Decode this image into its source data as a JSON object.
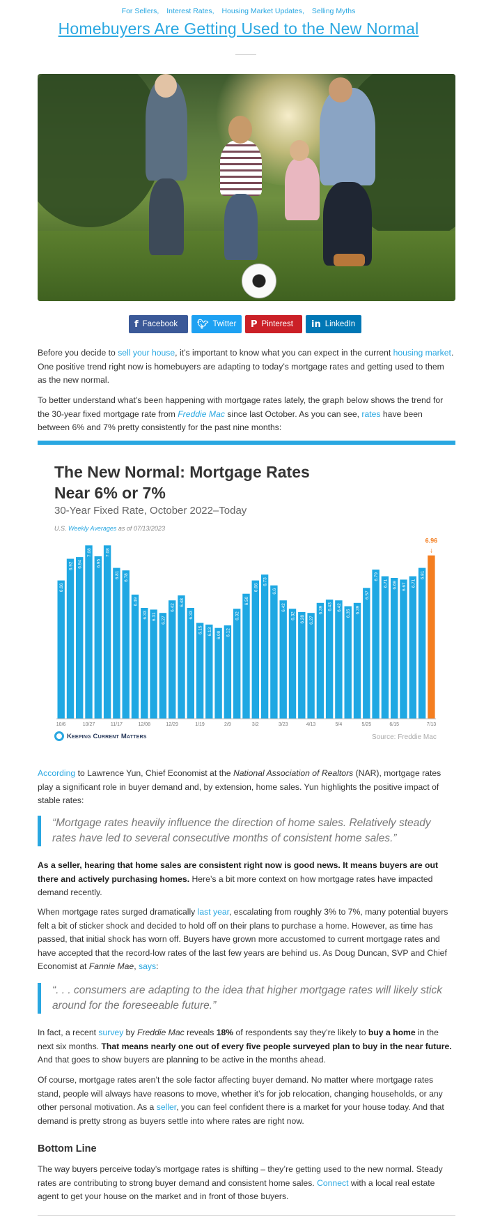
{
  "categories": [
    "For Sellers,",
    "Interest Rates,",
    "Housing Market Updates,",
    "Selling Myths"
  ],
  "title": "Homebuyers Are Getting Used to the New Normal",
  "share": {
    "facebook": "Facebook",
    "twitter": "Twitter",
    "pinterest": "Pinterest",
    "linkedin": "LinkedIn"
  },
  "p1": {
    "a": "Before you decide to ",
    "link1": "sell your house",
    "b": ", it’s important to know what you can expect in the current ",
    "link2": "housing market",
    "c": ". One positive trend right now is homebuyers are adapting to today’s mortgage rates and getting used to them as the new normal."
  },
  "p2": {
    "a": "To better understand what’s been happening with mortgage rates lately, the graph below shows the trend for the 30-year fixed mortgage rate from ",
    "link1": "Freddie Mac",
    "b": " since last October. As you can see, ",
    "link2": "rates",
    "c": " have been between 6% and 7% pretty consistently for the past nine months:"
  },
  "chart": {
    "title_line1": "The New Normal: Mortgage Rates",
    "title_line2": "Near 6% or 7%",
    "subtitle": "30-Year Fixed Rate, October 2022–Today",
    "note_a": "U.S. ",
    "note_link": "Weekly Averages",
    "note_b": " as of 07/13/2023",
    "brand": "Keeping Current Matters",
    "source": "Source: Freddie Mac"
  },
  "chart_data": {
    "type": "bar",
    "title": "The New Normal: Mortgage Rates Near 6% or 7%",
    "subtitle": "30-Year Fixed Rate, October 2022–Today",
    "values": [
      6.66,
      6.92,
      6.94,
      7.08,
      6.95,
      7.08,
      6.81,
      6.78,
      6.49,
      6.33,
      6.31,
      6.27,
      6.42,
      6.48,
      6.33,
      6.15,
      6.13,
      6.09,
      6.12,
      6.32,
      6.5,
      6.66,
      6.73,
      6.6,
      6.42,
      6.32,
      6.28,
      6.27,
      6.39,
      6.43,
      6.42,
      6.35,
      6.39,
      6.57,
      6.79,
      6.71,
      6.69,
      6.67,
      6.71,
      6.81,
      6.96
    ],
    "value_labels": [
      "6.66",
      "6.92",
      "6.94",
      "7.08",
      "6.95",
      "7.08",
      "6.81",
      "6.78",
      "6.49",
      "6.33",
      "6.31",
      "6.27",
      "6.42",
      "6.48",
      "6.33",
      "6.15",
      "6.13",
      "6.09",
      "6.12",
      "6.32",
      "6.50",
      "6.66",
      "6.73",
      "6.6",
      "6.42",
      "6.32",
      "6.28",
      "6.27",
      "6.39",
      "6.43",
      "6.42",
      "6.35",
      "6.39",
      "6.57",
      "6.79",
      "6.71",
      "6.69",
      "6.67",
      "6.71",
      "6.81",
      "6.96"
    ],
    "x_ticks": [
      {
        "index": 0,
        "label": "10/6"
      },
      {
        "index": 3,
        "label": "10/27"
      },
      {
        "index": 6,
        "label": "11/17"
      },
      {
        "index": 9,
        "label": "12/08"
      },
      {
        "index": 12,
        "label": "12/29"
      },
      {
        "index": 15,
        "label": "1/19"
      },
      {
        "index": 18,
        "label": "2/9"
      },
      {
        "index": 21,
        "label": "3/2"
      },
      {
        "index": 24,
        "label": "3/23"
      },
      {
        "index": 27,
        "label": "4/13"
      },
      {
        "index": 30,
        "label": "5/4"
      },
      {
        "index": 33,
        "label": "5/25"
      },
      {
        "index": 36,
        "label": "6/15"
      },
      {
        "index": 40,
        "label": "7/13"
      }
    ],
    "ylim": [
      5.0,
      7.2
    ],
    "highlight_index": 40,
    "colors": {
      "bar": "#1fa8e3",
      "highlight": "#f47e20"
    }
  },
  "p3": {
    "link": "According",
    "a": " to Lawrence Yun, Chief Economist at the ",
    "org": "National Association of Realtors",
    "b": " (NAR), mortgage rates play a significant role in buyer demand and, by extension, home sales. Yun highlights the positive impact of stable rates:"
  },
  "quote1": "“Mortgage rates heavily influence the direction of home sales. Relatively steady rates have led to several consecutive months of consistent home sales.”",
  "p4": {
    "bold": "As a seller, hearing that home sales are consistent right now is good news. It means buyers are out there and actively purchasing homes.",
    "rest": " Here’s a bit more context on how mortgage rates have impacted demand recently."
  },
  "p5": {
    "a": "When mortgage rates surged dramatically ",
    "link1": "last year",
    "b": ", escalating from roughly 3% to 7%, many potential buyers felt a bit of sticker shock and decided to hold off on their plans to purchase a home. However, as time has passed, that initial shock has worn off. Buyers have grown more accustomed to current mortgage rates and have accepted that the record-low rates of the last few years are behind us. As Doug Duncan, SVP and Chief Economist at ",
    "org": "Fannie Mae",
    "c": ", ",
    "link2": "says",
    "d": ":"
  },
  "quote2": "“. . . consumers are adapting to the idea that higher mortgage rates will likely stick around for the foreseeable future.”",
  "p6": {
    "a": "In fact, a recent ",
    "link": "survey",
    "b": " by ",
    "org": "Freddie Mac",
    "c": " reveals ",
    "pct": "18%",
    "d": " of respondents say they’re likely to ",
    "buy": "buy a home",
    "e": " in the next six months. ",
    "bold": "That means nearly one out of every five people surveyed plan to buy in the near future.",
    "f": " And that goes to show buyers are planning to be active in the months ahead."
  },
  "p7": {
    "a": "Of course, mortgage rates aren’t the sole factor affecting buyer demand. No matter where mortgage rates stand, people will always have reasons to move, whether it’s for job relocation, changing households, or any other personal motivation. As a ",
    "link": "seller",
    "b": ", you can feel confident there is a market for your house today. And that demand is pretty strong as buyers settle into where rates are right now."
  },
  "h_bottom": "Bottom Line",
  "p8": {
    "a": "The way buyers perceive today’s mortgage rates is shifting – they’re getting used to the new normal. Steady rates are contributing to strong buyer demand and consistent home sales. ",
    "link": "Connect",
    "b": " with a local real estate agent to get your house on the market and in front of those buyers."
  },
  "colors": {
    "accent": "#29a7e1",
    "facebook": "#3b5998",
    "twitter": "#1da1f2",
    "pinterest": "#cb2027",
    "linkedin": "#0077b5",
    "highlight_bar": "#f47e20"
  }
}
